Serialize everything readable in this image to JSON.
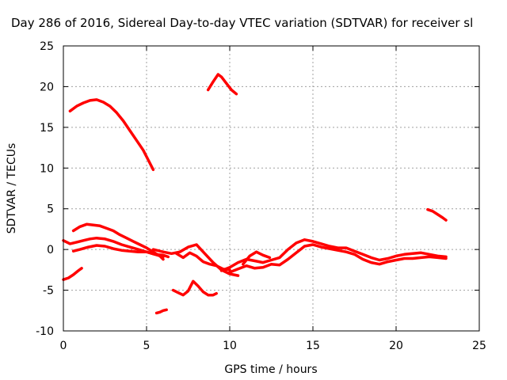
{
  "chart_data": {
    "type": "scatter",
    "title": "Day 286 of 2016, Sidereal Day-to-day VTEC variation (SDTVAR) for receiver sl",
    "xlabel": "GPS time / hours",
    "ylabel": "SDTVAR / TECUs",
    "xlim": [
      0,
      25
    ],
    "ylim": [
      -10,
      25
    ],
    "xticks": [
      0,
      5,
      10,
      15,
      20,
      25
    ],
    "yticks": [
      -10,
      -5,
      0,
      5,
      10,
      15,
      20,
      25
    ],
    "grid": true,
    "legend": "none",
    "marker_color": "#ff0000",
    "series": [
      {
        "x": [
          0.4,
          0.8,
          1.2,
          1.6,
          2.0,
          2.4,
          2.8,
          3.2,
          3.6,
          4.0,
          4.4,
          4.8,
          5.1,
          5.4
        ],
        "y": [
          17.0,
          17.6,
          18.0,
          18.3,
          18.4,
          18.1,
          17.6,
          16.8,
          15.8,
          14.6,
          13.4,
          12.2,
          11.0,
          9.8
        ]
      },
      {
        "x": [
          8.7,
          9.0,
          9.3,
          9.5,
          9.8,
          10.1,
          10.4
        ],
        "y": [
          19.6,
          20.6,
          21.5,
          21.2,
          20.4,
          19.6,
          19.1
        ]
      },
      {
        "x": [
          21.9,
          22.2,
          22.5,
          22.8,
          23.0
        ],
        "y": [
          4.9,
          4.7,
          4.3,
          3.9,
          3.6
        ]
      },
      {
        "x": [
          0.0,
          0.4,
          0.8,
          1.2,
          1.6,
          2.0,
          2.5,
          3.0,
          3.5,
          4.0,
          4.5,
          5.0,
          5.5,
          6.0
        ],
        "y": [
          1.1,
          0.7,
          0.9,
          1.1,
          1.3,
          1.4,
          1.3,
          1.0,
          0.6,
          0.3,
          0.0,
          -0.3,
          -0.6,
          -0.9
        ]
      },
      {
        "x": [
          0.6,
          1.0,
          1.4,
          1.8,
          2.2,
          2.6,
          3.0,
          3.4,
          3.8,
          4.2,
          4.6,
          5.0,
          5.4,
          5.8,
          6.0
        ],
        "y": [
          2.3,
          2.8,
          3.1,
          3.0,
          2.9,
          2.6,
          2.3,
          1.8,
          1.4,
          1.0,
          0.6,
          0.2,
          -0.3,
          -0.8,
          -1.2
        ]
      },
      {
        "x": [
          0.6,
          1.0,
          1.5,
          2.0,
          2.5,
          3.0,
          3.5,
          4.0,
          4.5,
          5.0,
          5.5,
          6.0,
          6.3
        ],
        "y": [
          -0.2,
          0.0,
          0.3,
          0.5,
          0.4,
          0.1,
          -0.1,
          -0.2,
          -0.3,
          -0.3,
          -0.6,
          -0.7,
          -0.9
        ]
      },
      {
        "x": [
          5.4,
          6.0,
          6.5,
          7.0,
          7.5,
          8.0,
          8.5,
          9.0,
          9.5,
          10.0,
          10.5
        ],
        "y": [
          0.0,
          -0.3,
          -0.5,
          -0.3,
          0.3,
          0.6,
          -0.5,
          -1.6,
          -2.5,
          -3.0,
          -3.2
        ]
      },
      {
        "x": [
          6.8,
          7.2,
          7.6,
          8.0,
          8.4,
          8.8,
          9.2,
          9.6,
          10.0
        ],
        "y": [
          -0.5,
          -1.0,
          -0.4,
          -0.8,
          -1.5,
          -1.8,
          -2.0,
          -2.4,
          -2.5
        ]
      },
      {
        "x": [
          9.5,
          10.0,
          10.5,
          11.0,
          11.5,
          12.0,
          12.5,
          13.0,
          13.5,
          14.0,
          14.5,
          15.0,
          15.5,
          16.0,
          16.5,
          17.0,
          17.5,
          18.0,
          18.5,
          19.0,
          19.5,
          20.0,
          20.5,
          21.0,
          21.5,
          22.0,
          22.5,
          23.0
        ],
        "y": [
          -2.6,
          -2.2,
          -1.6,
          -1.2,
          -1.4,
          -1.6,
          -1.3,
          -1.0,
          0.0,
          0.8,
          1.2,
          1.0,
          0.7,
          0.4,
          0.2,
          0.2,
          -0.2,
          -0.6,
          -1.0,
          -1.3,
          -1.1,
          -0.8,
          -0.6,
          -0.5,
          -0.4,
          -0.6,
          -0.8,
          -0.9
        ]
      },
      {
        "x": [
          10.0,
          10.5,
          11.0,
          11.5,
          12.0,
          12.5,
          13.0,
          13.5,
          14.0,
          14.5,
          15.0,
          15.5,
          16.0,
          16.5,
          17.0,
          17.5,
          18.0,
          18.5,
          19.0,
          19.5,
          20.0,
          20.5,
          21.0,
          21.5,
          22.0,
          22.5,
          23.0
        ],
        "y": [
          -2.8,
          -2.4,
          -2.0,
          -2.3,
          -2.2,
          -1.8,
          -1.9,
          -1.2,
          -0.4,
          0.4,
          0.6,
          0.3,
          0.1,
          -0.1,
          -0.3,
          -0.6,
          -1.2,
          -1.6,
          -1.8,
          -1.5,
          -1.3,
          -1.1,
          -1.1,
          -1.0,
          -0.9,
          -1.0,
          -1.1
        ]
      },
      {
        "x": [
          10.8,
          11.2,
          11.6,
          12.0,
          12.4
        ],
        "y": [
          -1.8,
          -0.8,
          -0.3,
          -0.7,
          -1.0
        ]
      },
      {
        "x": [
          0.0,
          0.3,
          0.6,
          0.9,
          1.1
        ],
        "y": [
          -3.7,
          -3.5,
          -3.1,
          -2.6,
          -2.3
        ]
      },
      {
        "x": [
          6.6,
          6.9,
          7.2,
          7.5,
          7.8,
          8.1,
          8.4,
          8.7,
          9.0,
          9.2
        ],
        "y": [
          -5.0,
          -5.3,
          -5.6,
          -5.1,
          -3.9,
          -4.5,
          -5.2,
          -5.6,
          -5.6,
          -5.4
        ]
      },
      {
        "x": [
          5.6,
          5.8,
          6.0,
          6.2
        ],
        "y": [
          -7.8,
          -7.7,
          -7.5,
          -7.4
        ]
      }
    ]
  }
}
